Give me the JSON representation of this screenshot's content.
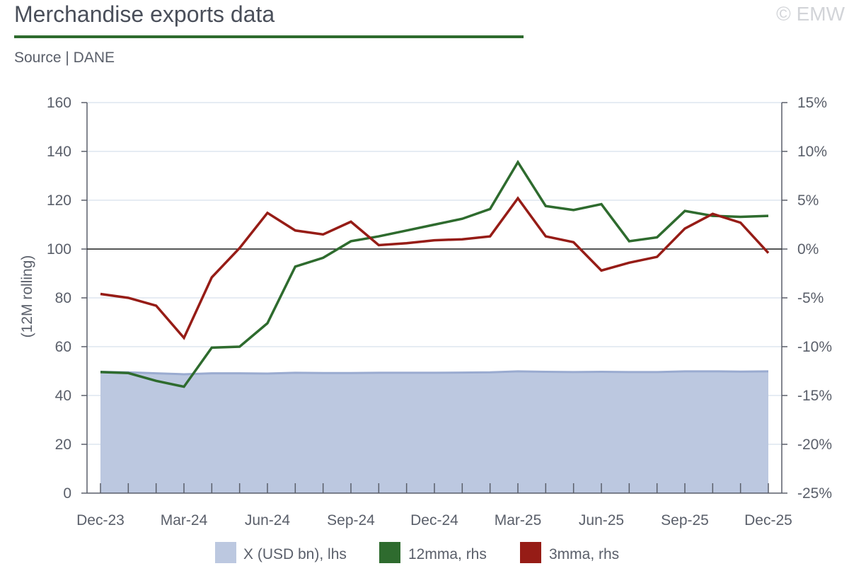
{
  "header": {
    "title": "Merchandise exports data",
    "source": "Source | DANE",
    "watermark": "© EMW"
  },
  "colors": {
    "area": "#bcc8e0",
    "area_line": "#9aabd0",
    "line_12mma": "#2e6b2e",
    "line_3mma": "#961c16",
    "grid": "#dde5ef",
    "axis": "#5a5f6a",
    "zero_line": "#222222"
  },
  "chart_data": {
    "type": "line",
    "title": "Merchandise exports data",
    "x": [
      "Dec-23",
      "Jan-24",
      "Feb-24",
      "Mar-24",
      "Apr-24",
      "May-24",
      "Jun-24",
      "Jul-24",
      "Aug-24",
      "Sep-24",
      "Oct-24",
      "Nov-24",
      "Dec-24",
      "Jan-25",
      "Feb-25",
      "Mar-25",
      "Apr-25",
      "May-25",
      "Jun-25",
      "Jul-25",
      "Aug-25",
      "Sep-25",
      "Oct-25",
      "Nov-25",
      "Dec-25"
    ],
    "x_tick_labels": [
      "Dec-23",
      "Mar-24",
      "Jun-24",
      "Sep-24",
      "Dec-24",
      "Mar-25",
      "Jun-25",
      "Sep-25",
      "Dec-25"
    ],
    "ylabel": "(12M rolling)",
    "ylim": [
      0,
      160
    ],
    "yticks": [
      0,
      20,
      40,
      60,
      80,
      100,
      120,
      140,
      160
    ],
    "y2lim": [
      -25,
      15
    ],
    "y2tick_labels": [
      "-25%",
      "-20%",
      "-15%",
      "-10%",
      "-5%",
      "0%",
      "5%",
      "10%",
      "15%"
    ],
    "grid": true,
    "legend_position": "bottom",
    "series": [
      {
        "name": "X (USD bn), lhs",
        "type": "area",
        "axis": "left",
        "values": [
          49.7,
          49.5,
          49.1,
          48.7,
          49.1,
          49.1,
          49.0,
          49.3,
          49.2,
          49.2,
          49.3,
          49.3,
          49.3,
          49.4,
          49.5,
          49.9,
          49.7,
          49.6,
          49.7,
          49.6,
          49.6,
          49.9,
          49.9,
          49.8,
          49.9
        ]
      },
      {
        "name": "12mma, rhs",
        "type": "line",
        "axis": "right",
        "values": [
          -12.6,
          -12.7,
          -13.5,
          -14.1,
          -10.1,
          -10.0,
          -7.6,
          -1.8,
          -0.9,
          0.8,
          1.3,
          1.9,
          2.5,
          3.1,
          4.1,
          8.9,
          4.4,
          4.0,
          4.6,
          0.8,
          1.2,
          3.9,
          3.4,
          3.3,
          3.4
        ]
      },
      {
        "name": "3mma, rhs",
        "type": "line",
        "axis": "right",
        "values": [
          -4.6,
          -5.0,
          -5.8,
          -9.1,
          -2.9,
          0.1,
          3.7,
          1.9,
          1.5,
          2.8,
          0.4,
          0.6,
          0.9,
          1.0,
          1.3,
          5.2,
          1.3,
          0.7,
          -2.2,
          -1.4,
          -0.8,
          2.1,
          3.6,
          2.7,
          -0.4
        ]
      }
    ]
  }
}
